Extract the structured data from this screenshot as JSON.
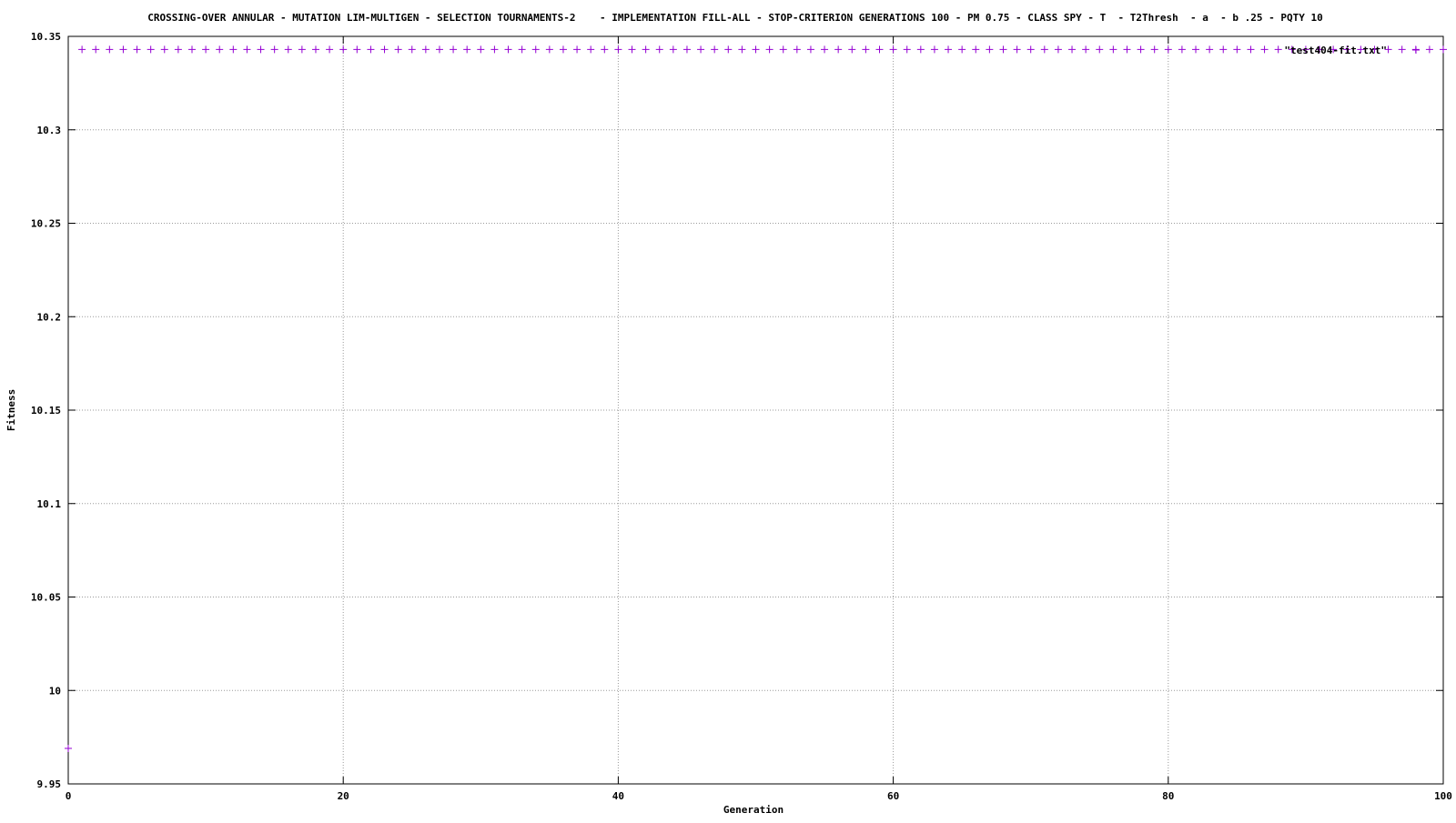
{
  "chart_data": {
    "type": "scatter",
    "title": "CROSSING-OVER ANNULAR - MUTATION LIM-MULTIGEN - SELECTION TOURNAMENTS-2    - IMPLEMENTATION FILL-ALL - STOP-CRITERION GENERATIONS 100 - PM 0.75 - CLASS SPY - T  - T2Thresh  - a  - b .25 - PQTY 10",
    "xlabel": "Generation",
    "ylabel": "Fitness",
    "xlim": [
      0,
      100
    ],
    "ylim": [
      9.95,
      10.35
    ],
    "xticks": [
      0,
      20,
      40,
      60,
      80,
      100
    ],
    "xtick_labels": [
      "0",
      "20",
      "40",
      "60",
      "80",
      "100"
    ],
    "yticks": [
      9.95,
      10,
      10.05,
      10.1,
      10.15,
      10.2,
      10.25,
      10.3,
      10.35
    ],
    "ytick_labels": [
      "9.95",
      "10",
      "10.05",
      "10.1",
      "10.15",
      "10.2",
      "10.25",
      "10.3",
      "10.35"
    ],
    "grid": true,
    "legend_position": "top-right",
    "series": [
      {
        "name": "\"test404-fit.txt\"",
        "color": "#9400d3",
        "marker": "plus",
        "points": [
          {
            "x": 0,
            "y": 9.969
          },
          {
            "x": 1,
            "y": 10.343
          },
          {
            "x": 2,
            "y": 10.343
          },
          {
            "x": 3,
            "y": 10.343
          },
          {
            "x": 4,
            "y": 10.343
          },
          {
            "x": 5,
            "y": 10.343
          },
          {
            "x": 6,
            "y": 10.343
          },
          {
            "x": 7,
            "y": 10.343
          },
          {
            "x": 8,
            "y": 10.343
          },
          {
            "x": 9,
            "y": 10.343
          },
          {
            "x": 10,
            "y": 10.343
          },
          {
            "x": 11,
            "y": 10.343
          },
          {
            "x": 12,
            "y": 10.343
          },
          {
            "x": 13,
            "y": 10.343
          },
          {
            "x": 14,
            "y": 10.343
          },
          {
            "x": 15,
            "y": 10.343
          },
          {
            "x": 16,
            "y": 10.343
          },
          {
            "x": 17,
            "y": 10.343
          },
          {
            "x": 18,
            "y": 10.343
          },
          {
            "x": 19,
            "y": 10.343
          },
          {
            "x": 20,
            "y": 10.343
          },
          {
            "x": 21,
            "y": 10.343
          },
          {
            "x": 22,
            "y": 10.343
          },
          {
            "x": 23,
            "y": 10.343
          },
          {
            "x": 24,
            "y": 10.343
          },
          {
            "x": 25,
            "y": 10.343
          },
          {
            "x": 26,
            "y": 10.343
          },
          {
            "x": 27,
            "y": 10.343
          },
          {
            "x": 28,
            "y": 10.343
          },
          {
            "x": 29,
            "y": 10.343
          },
          {
            "x": 30,
            "y": 10.343
          },
          {
            "x": 31,
            "y": 10.343
          },
          {
            "x": 32,
            "y": 10.343
          },
          {
            "x": 33,
            "y": 10.343
          },
          {
            "x": 34,
            "y": 10.343
          },
          {
            "x": 35,
            "y": 10.343
          },
          {
            "x": 36,
            "y": 10.343
          },
          {
            "x": 37,
            "y": 10.343
          },
          {
            "x": 38,
            "y": 10.343
          },
          {
            "x": 39,
            "y": 10.343
          },
          {
            "x": 40,
            "y": 10.343
          },
          {
            "x": 41,
            "y": 10.343
          },
          {
            "x": 42,
            "y": 10.343
          },
          {
            "x": 43,
            "y": 10.343
          },
          {
            "x": 44,
            "y": 10.343
          },
          {
            "x": 45,
            "y": 10.343
          },
          {
            "x": 46,
            "y": 10.343
          },
          {
            "x": 47,
            "y": 10.343
          },
          {
            "x": 48,
            "y": 10.343
          },
          {
            "x": 49,
            "y": 10.343
          },
          {
            "x": 50,
            "y": 10.343
          },
          {
            "x": 51,
            "y": 10.343
          },
          {
            "x": 52,
            "y": 10.343
          },
          {
            "x": 53,
            "y": 10.343
          },
          {
            "x": 54,
            "y": 10.343
          },
          {
            "x": 55,
            "y": 10.343
          },
          {
            "x": 56,
            "y": 10.343
          },
          {
            "x": 57,
            "y": 10.343
          },
          {
            "x": 58,
            "y": 10.343
          },
          {
            "x": 59,
            "y": 10.343
          },
          {
            "x": 60,
            "y": 10.343
          },
          {
            "x": 61,
            "y": 10.343
          },
          {
            "x": 62,
            "y": 10.343
          },
          {
            "x": 63,
            "y": 10.343
          },
          {
            "x": 64,
            "y": 10.343
          },
          {
            "x": 65,
            "y": 10.343
          },
          {
            "x": 66,
            "y": 10.343
          },
          {
            "x": 67,
            "y": 10.343
          },
          {
            "x": 68,
            "y": 10.343
          },
          {
            "x": 69,
            "y": 10.343
          },
          {
            "x": 70,
            "y": 10.343
          },
          {
            "x": 71,
            "y": 10.343
          },
          {
            "x": 72,
            "y": 10.343
          },
          {
            "x": 73,
            "y": 10.343
          },
          {
            "x": 74,
            "y": 10.343
          },
          {
            "x": 75,
            "y": 10.343
          },
          {
            "x": 76,
            "y": 10.343
          },
          {
            "x": 77,
            "y": 10.343
          },
          {
            "x": 78,
            "y": 10.343
          },
          {
            "x": 79,
            "y": 10.343
          },
          {
            "x": 80,
            "y": 10.343
          },
          {
            "x": 81,
            "y": 10.343
          },
          {
            "x": 82,
            "y": 10.343
          },
          {
            "x": 83,
            "y": 10.343
          },
          {
            "x": 84,
            "y": 10.343
          },
          {
            "x": 85,
            "y": 10.343
          },
          {
            "x": 86,
            "y": 10.343
          },
          {
            "x": 87,
            "y": 10.343
          },
          {
            "x": 88,
            "y": 10.343
          },
          {
            "x": 89,
            "y": 10.343
          },
          {
            "x": 90,
            "y": 10.343
          },
          {
            "x": 91,
            "y": 10.343
          },
          {
            "x": 92,
            "y": 10.343
          },
          {
            "x": 93,
            "y": 10.343
          },
          {
            "x": 94,
            "y": 10.343
          },
          {
            "x": 95,
            "y": 10.343
          },
          {
            "x": 96,
            "y": 10.343
          },
          {
            "x": 97,
            "y": 10.343
          },
          {
            "x": 98,
            "y": 10.343
          },
          {
            "x": 99,
            "y": 10.343
          },
          {
            "x": 100,
            "y": 10.343
          }
        ]
      }
    ]
  }
}
